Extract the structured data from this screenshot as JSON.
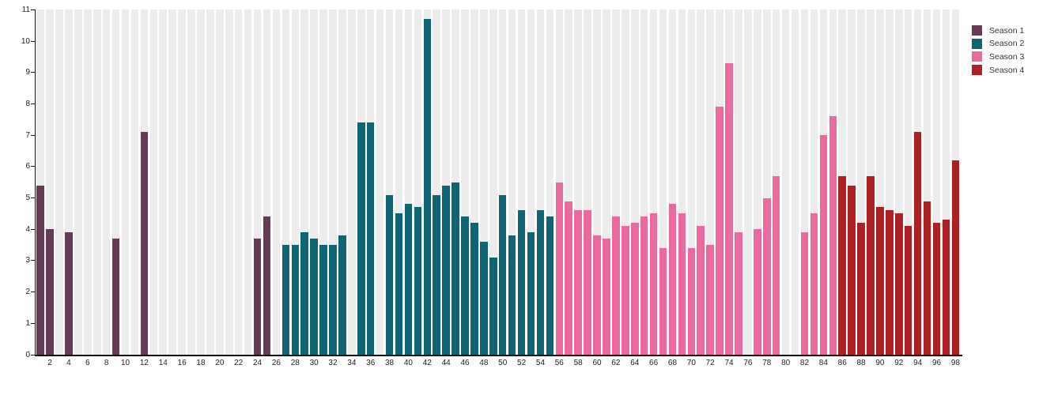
{
  "chart_data": {
    "type": "bar",
    "title": "",
    "xlabel": "",
    "ylabel": "",
    "ylim": [
      0,
      11
    ],
    "y_ticks": [
      0,
      1,
      2,
      3,
      4,
      5,
      6,
      7,
      8,
      9,
      10,
      11
    ],
    "x_ticks": [
      2,
      4,
      6,
      8,
      10,
      12,
      14,
      16,
      18,
      20,
      22,
      24,
      26,
      28,
      30,
      32,
      34,
      36,
      38,
      40,
      42,
      44,
      46,
      48,
      50,
      52,
      54,
      56,
      58,
      60,
      62,
      64,
      66,
      68,
      70,
      72,
      74,
      76,
      78,
      80,
      82,
      84,
      86,
      88,
      90,
      92,
      94,
      96,
      98
    ],
    "x_slots": 98,
    "grid": "off",
    "background": "vertical light-gray stripes, one per x slot",
    "legend_position": "outside-top-right",
    "colors": {
      "stripe": "#ececec",
      "axis": "#111111",
      "tick_label": "#222222",
      "legend_label": "#333333"
    },
    "series": [
      {
        "name": "Season 1",
        "color": "#673a57",
        "points": [
          [
            1,
            5.4
          ],
          [
            2,
            4.0
          ],
          [
            4,
            3.9
          ],
          [
            9,
            3.7
          ],
          [
            12,
            7.1
          ],
          [
            24,
            3.7
          ],
          [
            25,
            4.4
          ]
        ]
      },
      {
        "name": "Season 2",
        "color": "#0e6473",
        "points": [
          [
            27,
            3.5
          ],
          [
            28,
            3.5
          ],
          [
            29,
            3.9
          ],
          [
            30,
            3.7
          ],
          [
            31,
            3.5
          ],
          [
            32,
            3.5
          ],
          [
            33,
            3.8
          ],
          [
            35,
            7.4
          ],
          [
            36,
            7.4
          ],
          [
            38,
            5.1
          ],
          [
            39,
            4.5
          ],
          [
            40,
            4.8
          ],
          [
            41,
            4.7
          ],
          [
            42,
            10.7
          ],
          [
            43,
            5.1
          ],
          [
            44,
            5.4
          ],
          [
            45,
            5.5
          ],
          [
            46,
            4.4
          ],
          [
            47,
            4.2
          ],
          [
            48,
            3.6
          ],
          [
            49,
            3.1
          ],
          [
            50,
            5.1
          ],
          [
            51,
            3.8
          ],
          [
            52,
            4.6
          ],
          [
            53,
            3.9
          ],
          [
            54,
            4.6
          ],
          [
            55,
            4.4
          ]
        ]
      },
      {
        "name": "Season 3",
        "color": "#e86a9e",
        "points": [
          [
            56,
            5.5
          ],
          [
            57,
            4.9
          ],
          [
            58,
            4.6
          ],
          [
            59,
            4.6
          ],
          [
            60,
            3.8
          ],
          [
            61,
            3.7
          ],
          [
            62,
            4.4
          ],
          [
            63,
            4.1
          ],
          [
            64,
            4.2
          ],
          [
            65,
            4.4
          ],
          [
            66,
            4.5
          ],
          [
            67,
            3.4
          ],
          [
            68,
            4.8
          ],
          [
            69,
            4.5
          ],
          [
            70,
            3.4
          ],
          [
            71,
            4.1
          ],
          [
            72,
            3.5
          ],
          [
            73,
            7.9
          ],
          [
            74,
            9.3
          ],
          [
            75,
            3.9
          ],
          [
            77,
            4.0
          ],
          [
            78,
            5.0
          ],
          [
            79,
            5.7
          ],
          [
            82,
            3.9
          ],
          [
            83,
            4.5
          ],
          [
            84,
            7.0
          ],
          [
            85,
            7.6
          ]
        ]
      },
      {
        "name": "Season 4",
        "color": "#ad2125",
        "points": [
          [
            86,
            5.7
          ],
          [
            87,
            5.4
          ],
          [
            88,
            4.2
          ],
          [
            89,
            5.7
          ],
          [
            90,
            4.7
          ],
          [
            91,
            4.6
          ],
          [
            92,
            4.5
          ],
          [
            93,
            4.1
          ],
          [
            94,
            7.1
          ],
          [
            95,
            4.9
          ],
          [
            96,
            4.2
          ],
          [
            97,
            4.3
          ],
          [
            98,
            6.2
          ]
        ]
      }
    ]
  }
}
